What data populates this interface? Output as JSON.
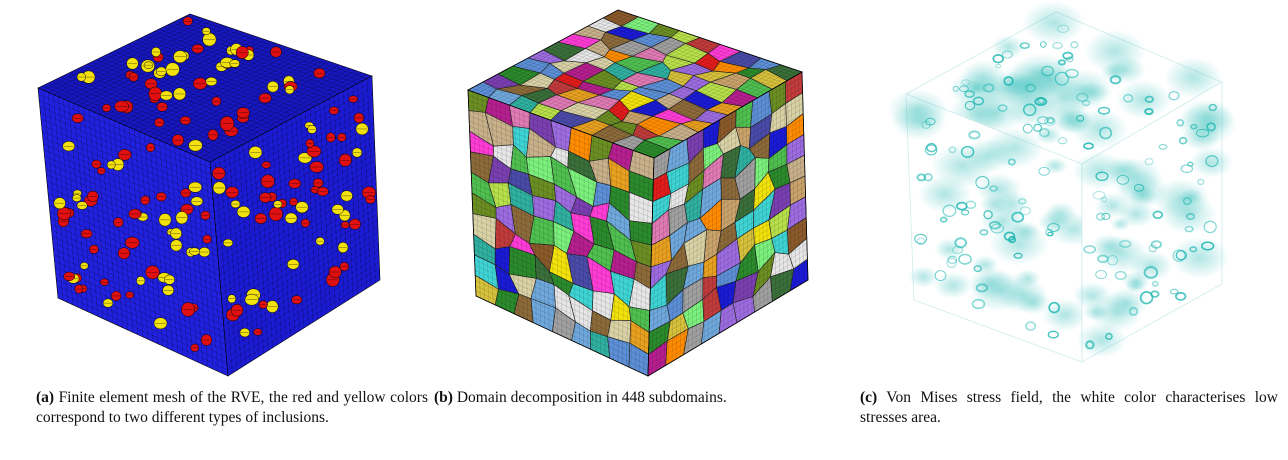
{
  "figure": {
    "panels": [
      {
        "id": "a",
        "label": "(a)",
        "caption": "Finite element mesh of the RVE, the red and yellow colors correspond to two different types of inclusions.",
        "colors": {
          "matrix": "#1f1fe0",
          "inclusion_1": "#e01010",
          "inclusion_2": "#f2e10c",
          "edges": "#000000"
        }
      },
      {
        "id": "b",
        "label": "(b)",
        "caption": "Domain decomposition in 448 subdomains.",
        "subdomains": 448
      },
      {
        "id": "c",
        "label": "(c)",
        "caption": "Von Mises stress field, the white color characterises low stresses area.",
        "colors": {
          "low": "#ffffff",
          "high": "#19b5b0"
        }
      }
    ]
  }
}
